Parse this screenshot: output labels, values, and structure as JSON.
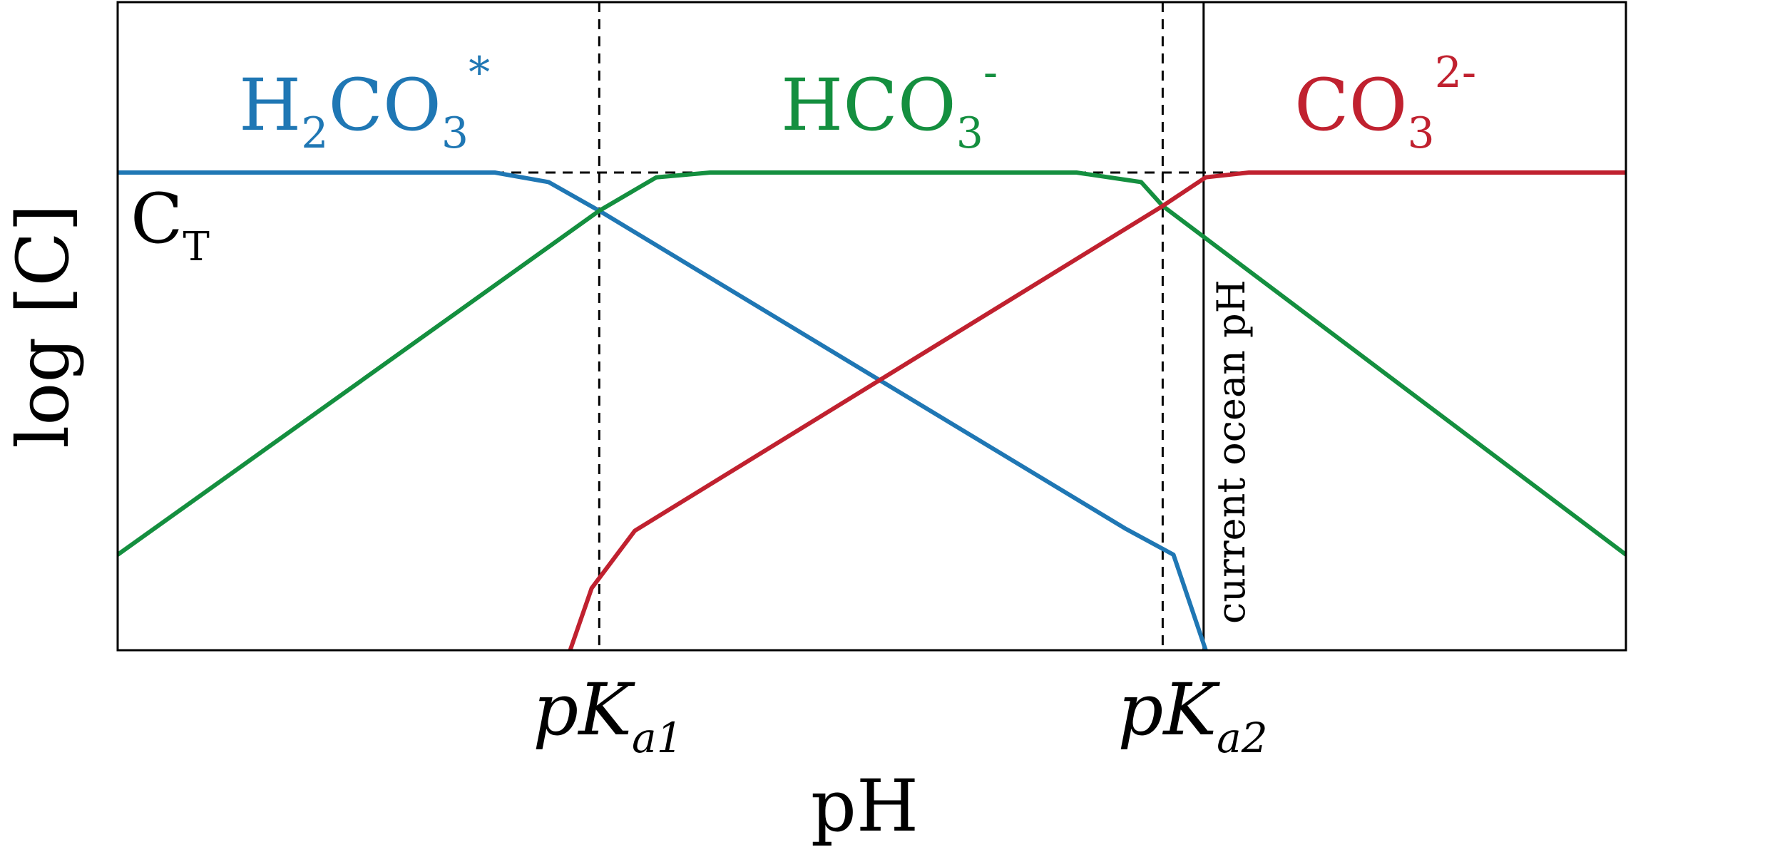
{
  "chart_data": {
    "type": "line",
    "title": "",
    "xlabel": "pH",
    "ylabel": "log [C]",
    "xlim": [
      0,
      14
    ],
    "ylim": [
      0,
      10
    ],
    "grid": false,
    "legend": "none",
    "x_ticks": [
      {
        "x": 4.47,
        "base": "pK",
        "sub": "a1"
      },
      {
        "x": 9.7,
        "base": "pK",
        "sub": "a2"
      }
    ],
    "reference_lines": [
      {
        "name": "pKa1",
        "x": 4.47,
        "style": "dashed"
      },
      {
        "name": "pKa2",
        "x": 9.7,
        "style": "dashed"
      },
      {
        "name": "current-ocean-ph",
        "x": 10.08,
        "style": "solid",
        "label": "current ocean pH"
      },
      {
        "name": "total-carbon",
        "y": 10,
        "style": "dashed",
        "label_base": "C",
        "label_sub": "T"
      }
    ],
    "series": [
      {
        "label_base": "H",
        "label_parts": [
          [
            "H",
            ""
          ],
          [
            "2",
            "sub"
          ],
          [
            "CO",
            ""
          ],
          [
            "3",
            "sub"
          ],
          [
            "*",
            "sup"
          ]
        ],
        "color": "#1f77b4",
        "points": [
          [
            0,
            10
          ],
          [
            3.5,
            10
          ],
          [
            4.0,
            9.8
          ],
          [
            4.47,
            9.2
          ],
          [
            9.35,
            2.55
          ],
          [
            9.8,
            2.0
          ],
          [
            10.1,
            0
          ]
        ]
      },
      {
        "label_parts": [
          [
            "HCO",
            ""
          ],
          [
            "3",
            "sub"
          ],
          [
            "-",
            "sup"
          ]
        ],
        "color": "#148f3f",
        "points": [
          [
            0,
            2.0
          ],
          [
            4.47,
            9.2
          ],
          [
            5.0,
            9.9
          ],
          [
            5.5,
            10
          ],
          [
            8.9,
            10
          ],
          [
            9.5,
            9.8
          ],
          [
            9.7,
            9.3
          ],
          [
            14,
            2.0
          ]
        ]
      },
      {
        "label_parts": [
          [
            "CO",
            ""
          ],
          [
            "3",
            "sub"
          ],
          [
            "2-",
            "sup"
          ]
        ],
        "color": "#c0212f",
        "points": [
          [
            4.2,
            0
          ],
          [
            4.4,
            1.3
          ],
          [
            4.8,
            2.5
          ],
          [
            9.7,
            9.3
          ],
          [
            10.1,
            9.9
          ],
          [
            10.5,
            10
          ],
          [
            14,
            10
          ]
        ]
      }
    ],
    "annotations": {
      "h2co3": {
        "parts": [
          "H",
          "2",
          "CO",
          "3",
          "*"
        ]
      },
      "hco3": {
        "parts": [
          "HCO",
          "3",
          "-"
        ]
      },
      "co3": {
        "parts": [
          "CO",
          "3",
          "2-"
        ]
      },
      "ct": {
        "parts": [
          "C",
          "T"
        ]
      },
      "pka1": {
        "parts": [
          "pK",
          "a1"
        ]
      },
      "pka2": {
        "parts": [
          "pK",
          "a2"
        ]
      }
    }
  }
}
